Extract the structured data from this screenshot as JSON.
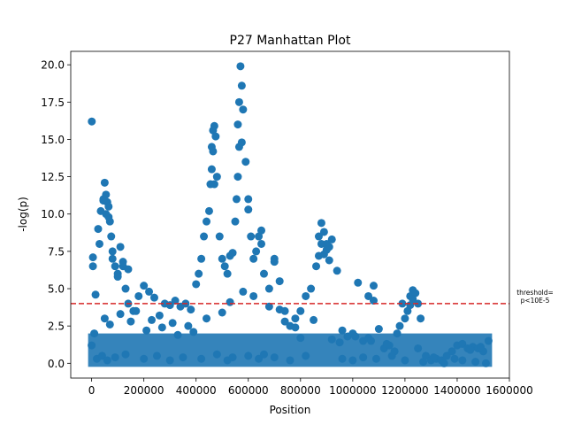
{
  "chart_data": {
    "type": "scatter",
    "title": "P27 Manhattan Plot",
    "xlabel": "Position",
    "ylabel": "-log(p)",
    "xlim": [
      -80000,
      1600000
    ],
    "ylim": [
      -0.99,
      20.9
    ],
    "xticks": [
      0,
      200000,
      400000,
      600000,
      800000,
      1000000,
      1200000,
      1400000,
      1600000
    ],
    "xtick_labels": [
      "0",
      "200000",
      "400000",
      "600000",
      "800000",
      "1000000",
      "1200000",
      "1400000",
      "1600000"
    ],
    "yticks": [
      0,
      2.5,
      5,
      7.5,
      10,
      12.5,
      15,
      17.5,
      20
    ],
    "ytick_labels": [
      "0.0",
      "2.5",
      "5.0",
      "7.5",
      "10.0",
      "12.5",
      "15.0",
      "17.5",
      "20.0"
    ],
    "grid": false,
    "point_color": "#1f77b4",
    "threshold": {
      "y": 4.0,
      "color": "#d62728",
      "label_line1": "threshold=",
      "label_line2": "p<10E-5"
    },
    "series": [
      {
        "x": [
          0,
          5000,
          15000,
          25000,
          35000,
          45000,
          50000,
          55000,
          60000,
          65000,
          70000,
          75000,
          80000,
          90000,
          100000,
          110000,
          120000,
          130000,
          140000,
          160000,
          180000,
          200000,
          220000,
          240000,
          260000,
          280000,
          300000,
          320000,
          340000,
          360000,
          380000,
          400000,
          410000,
          420000,
          430000,
          440000,
          450000,
          455000,
          460000,
          465000,
          470000,
          475000,
          480000,
          490000,
          500000,
          510000,
          520000,
          530000,
          540000,
          550000,
          555000,
          560000,
          565000,
          570000,
          575000,
          580000,
          590000,
          600000,
          610000,
          620000,
          630000,
          640000,
          650000,
          660000,
          680000,
          700000,
          720000,
          740000,
          760000,
          780000,
          800000,
          820000,
          840000,
          860000,
          870000,
          880000,
          890000,
          900000,
          910000,
          920000,
          940000,
          960000,
          980000,
          1000000,
          1020000,
          1040000,
          1060000,
          1080000,
          1100000,
          1120000,
          1140000,
          1160000,
          1180000,
          1190000,
          1200000,
          1210000,
          1220000,
          1230000,
          1240000,
          1250000,
          1260000,
          1280000,
          1300000,
          1320000,
          1340000,
          1360000,
          1380000,
          1400000,
          1420000,
          1440000,
          1460000,
          1480000,
          1500000,
          1520000,
          5000,
          30000,
          45000,
          55000,
          65000,
          80000,
          100000,
          120000,
          140000,
          460000,
          465000,
          470000,
          560000,
          565000,
          570,
          575000,
          600000,
          650000,
          700000,
          870000,
          880000,
          890000,
          900000,
          910000,
          1060000,
          1080000,
          1220000,
          1230000,
          20000,
          40000,
          60000,
          90000,
          130000,
          200000,
          250000,
          300000,
          350000,
          420000,
          480000,
          520000,
          540000,
          600000,
          640000,
          660000,
          700000,
          760000,
          820000,
          960000,
          1000000,
          1040000,
          1090000,
          1150000,
          1200000,
          1270000,
          1350000,
          1420000,
          1470000,
          1510000,
          10000,
          50000,
          70000,
          110000,
          150000,
          170000,
          210000,
          230000,
          270000,
          310000,
          330000,
          370000,
          390000,
          440000,
          500000,
          530000,
          580000,
          620000,
          680000,
          720000,
          740000,
          780000,
          800000,
          850000,
          920000,
          950000,
          1010000,
          1070000,
          1130000,
          1170000,
          1250000,
          1310000,
          1390000,
          1450000,
          1490000
        ],
        "y": [
          1.2,
          7.1,
          4.6,
          9.0,
          10.2,
          10.9,
          12.1,
          11.3,
          10.8,
          10.5,
          9.5,
          8.5,
          7.0,
          6.5,
          6.0,
          7.8,
          6.5,
          5.0,
          4.0,
          3.5,
          4.5,
          5.2,
          4.8,
          4.4,
          3.2,
          4.0,
          3.9,
          4.2,
          3.8,
          4.0,
          3.6,
          5.3,
          6.0,
          7.0,
          8.5,
          9.5,
          10.2,
          12.0,
          14.5,
          15.6,
          15.9,
          15.2,
          12.5,
          8.5,
          7.0,
          6.5,
          6.0,
          7.2,
          7.4,
          9.5,
          11.0,
          12.5,
          14.5,
          19.9,
          18.6,
          17.0,
          13.5,
          11.0,
          8.5,
          7.0,
          7.5,
          8.5,
          8.9,
          6.0,
          5.0,
          7.0,
          5.5,
          3.5,
          2.5,
          3.0,
          3.5,
          4.5,
          5.0,
          6.5,
          8.5,
          9.4,
          8.8,
          8.0,
          7.8,
          8.3,
          6.2,
          2.2,
          1.8,
          2.0,
          5.4,
          1.5,
          1.7,
          5.2,
          2.3,
          1.0,
          1.2,
          0.8,
          2.5,
          4.0,
          3.0,
          3.5,
          4.5,
          4.9,
          4.7,
          4.0,
          3.0,
          0.5,
          0.2,
          0.3,
          0.2,
          0.5,
          0.8,
          1.2,
          1.3,
          1.0,
          1.1,
          1.0,
          0.8,
          1.5,
          6.5,
          8.0,
          11.0,
          10.0,
          9.8,
          7.5,
          5.8,
          6.8,
          6.3,
          13.0,
          14.2,
          12.0,
          16.0,
          17.5,
          16.2,
          14.8,
          10.3,
          8.0,
          6.8,
          7.2,
          8.0,
          7.3,
          7.6,
          6.9,
          4.5,
          4.2,
          3.9,
          4.3,
          0.3,
          0.5,
          0.2,
          0.4,
          0.6,
          0.3,
          0.5,
          0.2,
          0.4,
          0.3,
          0.6,
          0.2,
          0.4,
          0.5,
          0.3,
          0.6,
          0.4,
          0.2,
          0.5,
          0.3,
          0.2,
          0.4,
          0.3,
          0.5,
          0.2,
          0.1,
          0.0,
          0.2,
          0.1,
          0.0,
          2.0,
          3.0,
          2.6,
          3.3,
          2.8,
          3.5,
          2.2,
          2.9,
          2.4,
          2.7,
          1.9,
          2.5,
          2.1,
          3.0,
          3.4,
          4.1,
          4.8,
          4.5,
          3.8,
          3.6,
          2.8,
          2.4,
          1.7,
          2.9,
          1.6,
          1.4,
          1.8,
          1.5,
          1.3,
          2.0,
          1.0,
          0.4,
          0.3,
          0.9,
          1.1
        ]
      }
    ]
  }
}
